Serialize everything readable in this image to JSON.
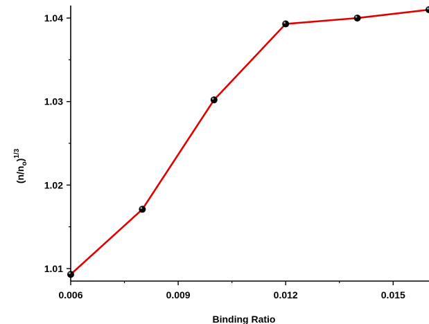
{
  "chart_data": {
    "type": "line",
    "title": "",
    "xlabel": "Binding Ratio",
    "ylabel": {
      "base": "(n/n",
      "subscript": "o",
      "close": ")",
      "superscript": "1/3"
    },
    "xlim": [
      0.006,
      0.016
    ],
    "ylim": [
      1.0085,
      1.0415
    ],
    "xticks": [
      0.006,
      0.009,
      0.012,
      0.015
    ],
    "xtick_labels": [
      "0.006",
      "0.009",
      "0.012",
      "0.015"
    ],
    "yticks": [
      1.01,
      1.02,
      1.03,
      1.04
    ],
    "ytick_labels": [
      "1.01",
      "1.02",
      "1.03",
      "1.04"
    ],
    "grid": false,
    "legend": "none",
    "series": [
      {
        "line_color": "#e00000",
        "marker_color": "#000000",
        "x": [
          0.006,
          0.008,
          0.01,
          0.012,
          0.014,
          0.016
        ],
        "y": [
          1.0093,
          1.0171,
          1.0302,
          1.0393,
          1.04,
          1.041
        ]
      }
    ]
  }
}
